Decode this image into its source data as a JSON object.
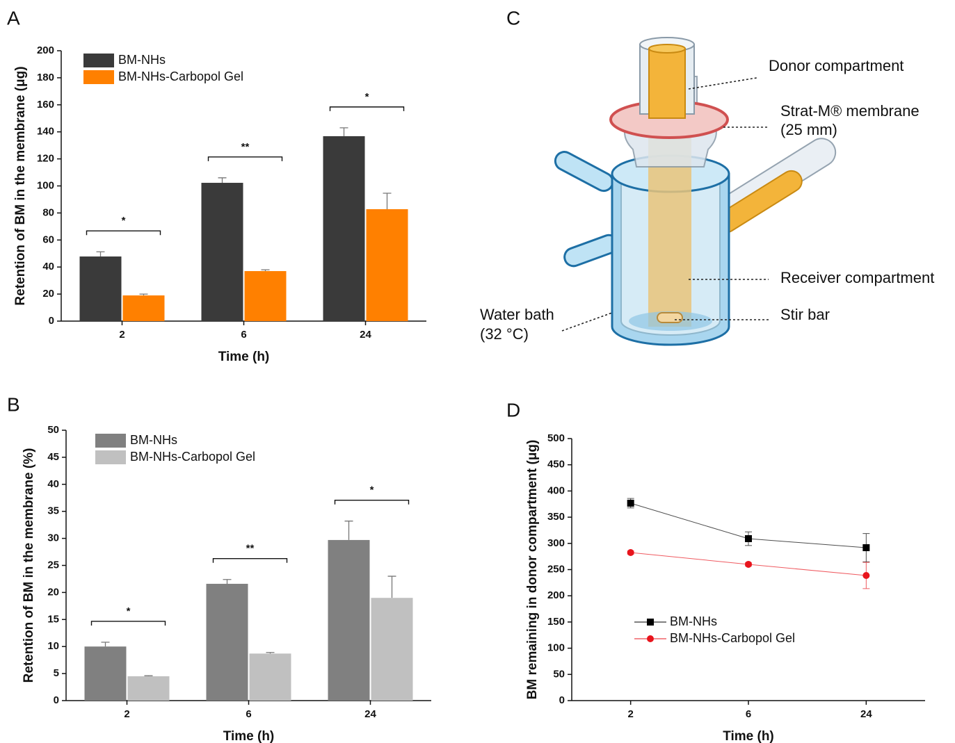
{
  "chart_data": [
    {
      "type": "bar",
      "panel": "A",
      "y_label": "Retention of BM in the membrane (μg)",
      "x_label": "Time (h)",
      "categories": [
        "2",
        "6",
        "24"
      ],
      "series": [
        {
          "name": "BM-NHs",
          "color": "#3a3a3a",
          "values": [
            47.8,
            102.3,
            136.8
          ],
          "errors": [
            3.5,
            3.7,
            6.2
          ]
        },
        {
          "name": "BM-NHs-Carbopol Gel",
          "color": "#ff8000",
          "values": [
            19.0,
            37.0,
            82.8
          ],
          "errors": [
            1.0,
            1.0,
            11.8
          ]
        }
      ],
      "significance": [
        "*",
        "**",
        "*"
      ],
      "ylim": [
        0,
        200
      ],
      "yticks": [
        0,
        20,
        40,
        60,
        80,
        100,
        120,
        140,
        160,
        180,
        200
      ],
      "legend": "upper left"
    },
    {
      "type": "bar",
      "panel": "B",
      "y_label": "Retention of BM in the membrane (%)",
      "x_label": "Time (h)",
      "categories": [
        "2",
        "6",
        "24"
      ],
      "series": [
        {
          "name": "BM-NHs",
          "color": "#808080",
          "values": [
            10.0,
            21.6,
            29.7
          ],
          "errors": [
            0.8,
            0.8,
            3.5
          ]
        },
        {
          "name": "BM-NHs-Carbopol Gel",
          "color": "#c0c0c0",
          "values": [
            4.5,
            8.7,
            19.0
          ],
          "errors": [
            0.1,
            0.2,
            4.0
          ]
        }
      ],
      "significance": [
        "*",
        "**",
        "*"
      ],
      "ylim": [
        0,
        50
      ],
      "yticks": [
        0,
        5,
        10,
        15,
        20,
        25,
        30,
        35,
        40,
        45,
        50
      ],
      "legend": "upper left"
    },
    {
      "type": "line",
      "panel": "D",
      "y_label": "BM remaining in donor compartment (μg)",
      "x_label": "Time (h)",
      "categories": [
        "2",
        "6",
        "24"
      ],
      "series": [
        {
          "name": "BM-NHs",
          "color": "#000000",
          "marker": "square",
          "values": [
            376.7,
            309.0,
            291.8
          ],
          "errors": [
            9,
            13,
            27
          ]
        },
        {
          "name": "BM-NHs-Carbopol Gel",
          "color": "#e8141c",
          "marker": "circle",
          "values": [
            282.5,
            260.0,
            238.7
          ],
          "errors": [
            3,
            3,
            25
          ]
        }
      ],
      "ylim": [
        0,
        500
      ],
      "yticks": [
        0,
        50,
        100,
        150,
        200,
        250,
        300,
        350,
        400,
        450,
        500
      ],
      "legend": "lower left"
    }
  ],
  "diagram": {
    "panel": "C",
    "labels": {
      "donor": "Donor compartment",
      "membrane": "Strat-M® membrane",
      "membrane_size": "(25 mm)",
      "receiver": "Receiver compartment",
      "stir": "Stir bar",
      "bath": "Water bath",
      "bath_temp": "(32 °C)"
    }
  }
}
